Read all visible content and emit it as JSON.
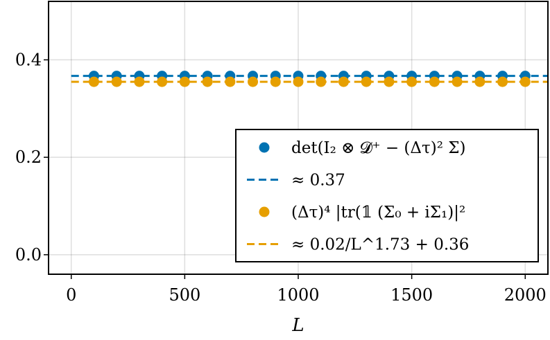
{
  "chart_data": {
    "type": "scatter",
    "xlabel": "L",
    "ylabel": "",
    "xlim": [
      -100,
      2100
    ],
    "ylim": [
      -0.04,
      0.52
    ],
    "xticks": [
      0,
      500,
      1000,
      1500,
      2000
    ],
    "xtick_labels": [
      "0",
      "500",
      "1000",
      "1500",
      "2000"
    ],
    "yticks": [
      0.0,
      0.2,
      0.4
    ],
    "ytick_labels": [
      "0.0",
      "0.2",
      "0.4"
    ],
    "grid": true,
    "legend_position": "bottom-right",
    "colors": {
      "blue": "#0072B2",
      "orange": "#E69F00"
    },
    "series": [
      {
        "name": "det(I₂ ⊗ 𝓓⁺ − (Δτ)² Σ)",
        "kind": "scatter",
        "color": "#0072B2",
        "x": [
          100,
          200,
          300,
          400,
          500,
          600,
          700,
          800,
          900,
          1000,
          1100,
          1200,
          1300,
          1400,
          1500,
          1600,
          1700,
          1800,
          1900,
          2000
        ],
        "y": [
          0.367,
          0.367,
          0.367,
          0.367,
          0.367,
          0.367,
          0.367,
          0.367,
          0.367,
          0.367,
          0.367,
          0.367,
          0.367,
          0.367,
          0.367,
          0.367,
          0.367,
          0.367,
          0.367,
          0.367
        ]
      },
      {
        "name": "≈ 0.37",
        "kind": "line",
        "color": "#0072B2",
        "x": [
          0,
          2100
        ],
        "y": [
          0.367,
          0.367
        ]
      },
      {
        "name": "(Δτ)⁴ |tr(𝟙 (Σ₀ + iΣ₁)|²",
        "kind": "scatter",
        "color": "#E69F00",
        "x": [
          100,
          200,
          300,
          400,
          500,
          600,
          700,
          800,
          900,
          1000,
          1100,
          1200,
          1300,
          1400,
          1500,
          1600,
          1700,
          1800,
          1900,
          2000
        ],
        "y": [
          0.355,
          0.355,
          0.355,
          0.355,
          0.355,
          0.355,
          0.355,
          0.355,
          0.355,
          0.355,
          0.355,
          0.355,
          0.355,
          0.355,
          0.355,
          0.355,
          0.355,
          0.355,
          0.355,
          0.355
        ]
      },
      {
        "name": "≈ 0.02/L^1.73 + 0.36",
        "kind": "line",
        "color": "#E69F00",
        "x": [
          0,
          2100
        ],
        "y": [
          0.355,
          0.355
        ]
      }
    ]
  }
}
